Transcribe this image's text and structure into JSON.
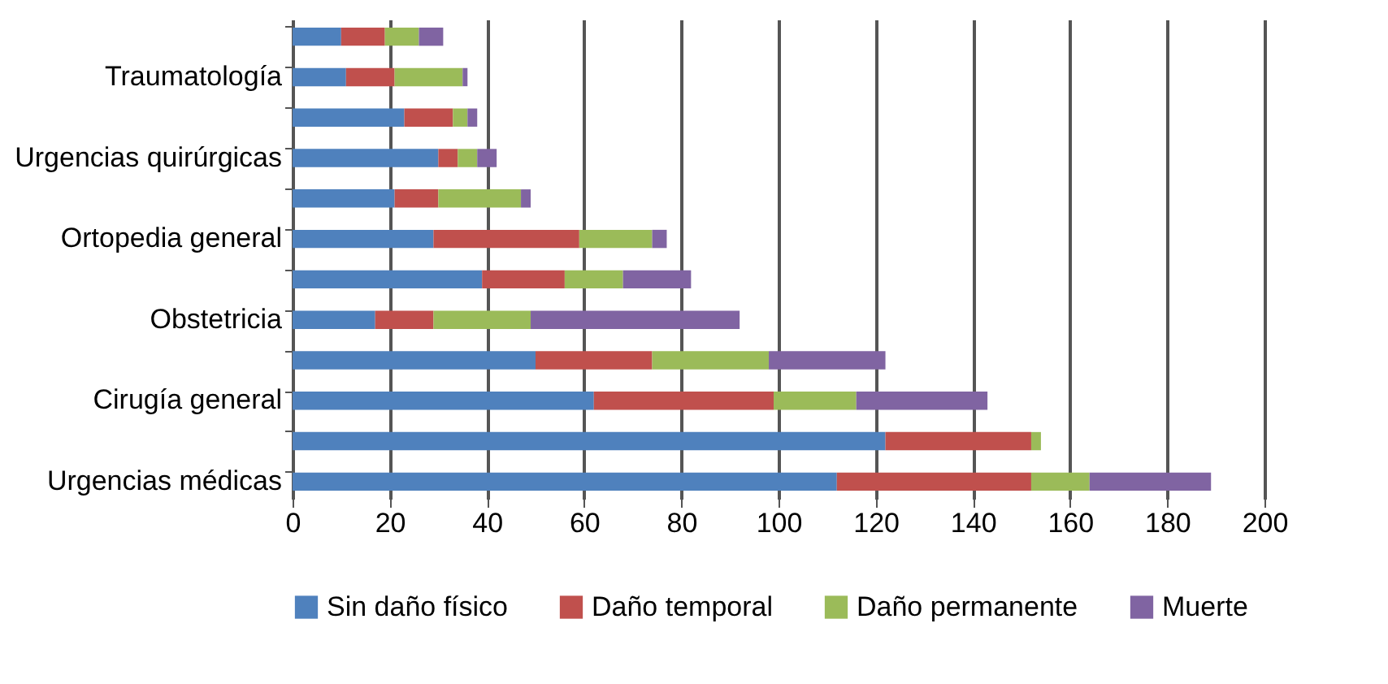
{
  "chart_data": {
    "type": "bar",
    "orientation": "horizontal",
    "stacked": true,
    "categories": [
      null,
      "Traumatología",
      null,
      "Urgencias quirúrgicas",
      null,
      "Ortopedia general",
      null,
      "Obstetricia",
      null,
      "Cirugía general",
      null,
      "Urgencias médicas"
    ],
    "series": [
      {
        "name": "Sin daño físico",
        "color": "#4f81bd",
        "values": [
          10,
          11,
          23,
          30,
          21,
          29,
          39,
          17,
          50,
          62,
          122,
          112
        ]
      },
      {
        "name": "Daño temporal",
        "color": "#c0504d",
        "values": [
          9,
          10,
          10,
          4,
          9,
          30,
          17,
          12,
          24,
          37,
          30,
          40
        ]
      },
      {
        "name": "Daño permanente",
        "color": "#9bbb59",
        "values": [
          7,
          14,
          3,
          4,
          17,
          15,
          12,
          20,
          24,
          17,
          2,
          12
        ]
      },
      {
        "name": "Muerte",
        "color": "#8064a2",
        "values": [
          5,
          1,
          2,
          4,
          2,
          3,
          14,
          43,
          24,
          27,
          null,
          25
        ]
      }
    ],
    "xlim": [
      0,
      200
    ],
    "xticks": [
      0,
      20,
      40,
      60,
      80,
      100,
      120,
      140,
      160,
      180,
      200
    ],
    "grid": "x",
    "legend": "bottom"
  }
}
